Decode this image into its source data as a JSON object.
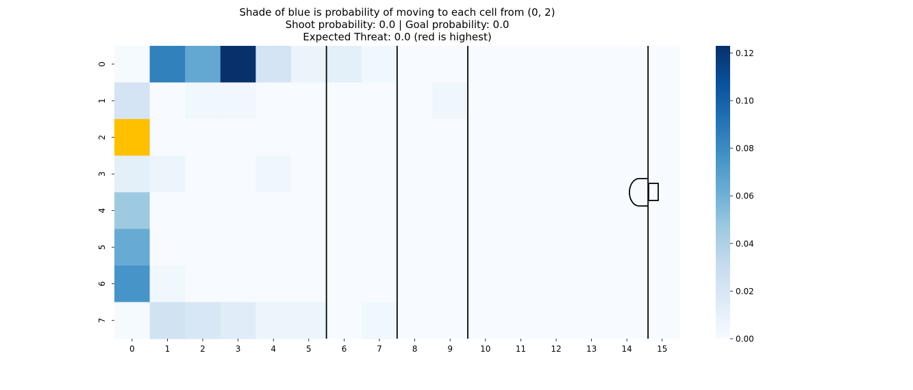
{
  "chart_data": {
    "type": "heatmap",
    "title_lines": [
      "Shade of blue is probability of moving to each cell from (0, 2)",
      "Shoot probability: 0.0 | Goal probability: 0.0",
      "Expected Threat: 0.0 (red is highest)"
    ],
    "x_ticks": [
      "0",
      "1",
      "2",
      "3",
      "4",
      "5",
      "6",
      "7",
      "8",
      "9",
      "10",
      "11",
      "12",
      "13",
      "14",
      "15"
    ],
    "y_ticks": [
      "0",
      "1",
      "2",
      "3",
      "4",
      "5",
      "6",
      "7"
    ],
    "colorbar": {
      "min": 0.0,
      "max": 0.123,
      "ticks": [
        "0.00",
        "0.02",
        "0.04",
        "0.06",
        "0.08",
        "0.10",
        "0.12"
      ],
      "tick_values": [
        0.0,
        0.02,
        0.04,
        0.06,
        0.08,
        0.1,
        0.12
      ],
      "colormap": "Blues"
    },
    "values": [
      [
        0.001,
        0.085,
        0.065,
        0.123,
        0.022,
        0.007,
        0.012,
        0.004,
        0.0,
        0.0,
        0.0,
        0.0,
        0.0,
        0.0,
        0.0,
        0.0
      ],
      [
        0.022,
        0.0,
        0.004,
        0.004,
        0.0,
        0.0,
        0.0,
        0.0,
        0.0,
        0.005,
        0.0,
        0.0,
        0.0,
        0.0,
        0.0,
        0.0
      ],
      [
        0.0,
        0.0,
        0.0,
        0.0,
        0.0,
        0.0,
        0.0,
        0.0,
        0.0,
        0.0,
        0.0,
        0.0,
        0.0,
        0.0,
        0.0,
        0.0
      ],
      [
        0.012,
        0.006,
        0.0,
        0.0,
        0.005,
        0.0,
        0.0,
        0.0,
        0.0,
        0.0,
        0.0,
        0.0,
        0.0,
        0.0,
        0.0,
        0.0
      ],
      [
        0.046,
        0.0,
        0.0,
        0.0,
        0.0,
        0.0,
        0.0,
        0.0,
        0.0,
        0.0,
        0.0,
        0.0,
        0.0,
        0.0,
        0.0,
        0.0
      ],
      [
        0.063,
        0.0,
        0.0,
        0.0,
        0.0,
        0.0,
        0.0,
        0.0,
        0.0,
        0.0,
        0.0,
        0.0,
        0.0,
        0.0,
        0.0,
        0.0
      ],
      [
        0.075,
        0.004,
        0.0,
        0.0,
        0.0,
        0.0,
        0.0,
        0.0,
        0.0,
        0.0,
        0.0,
        0.0,
        0.0,
        0.0,
        0.0,
        0.0
      ],
      [
        0.001,
        0.024,
        0.019,
        0.014,
        0.006,
        0.006,
        0.0,
        0.004,
        0.0,
        0.0,
        0.0,
        0.0,
        0.0,
        0.0,
        0.0,
        0.0
      ]
    ],
    "highlight_cell": {
      "row": 2,
      "col": 0,
      "color": "#ffc000"
    },
    "vertical_lines_at_x": [
      5.5,
      7.5,
      9.5,
      14.6
    ]
  }
}
